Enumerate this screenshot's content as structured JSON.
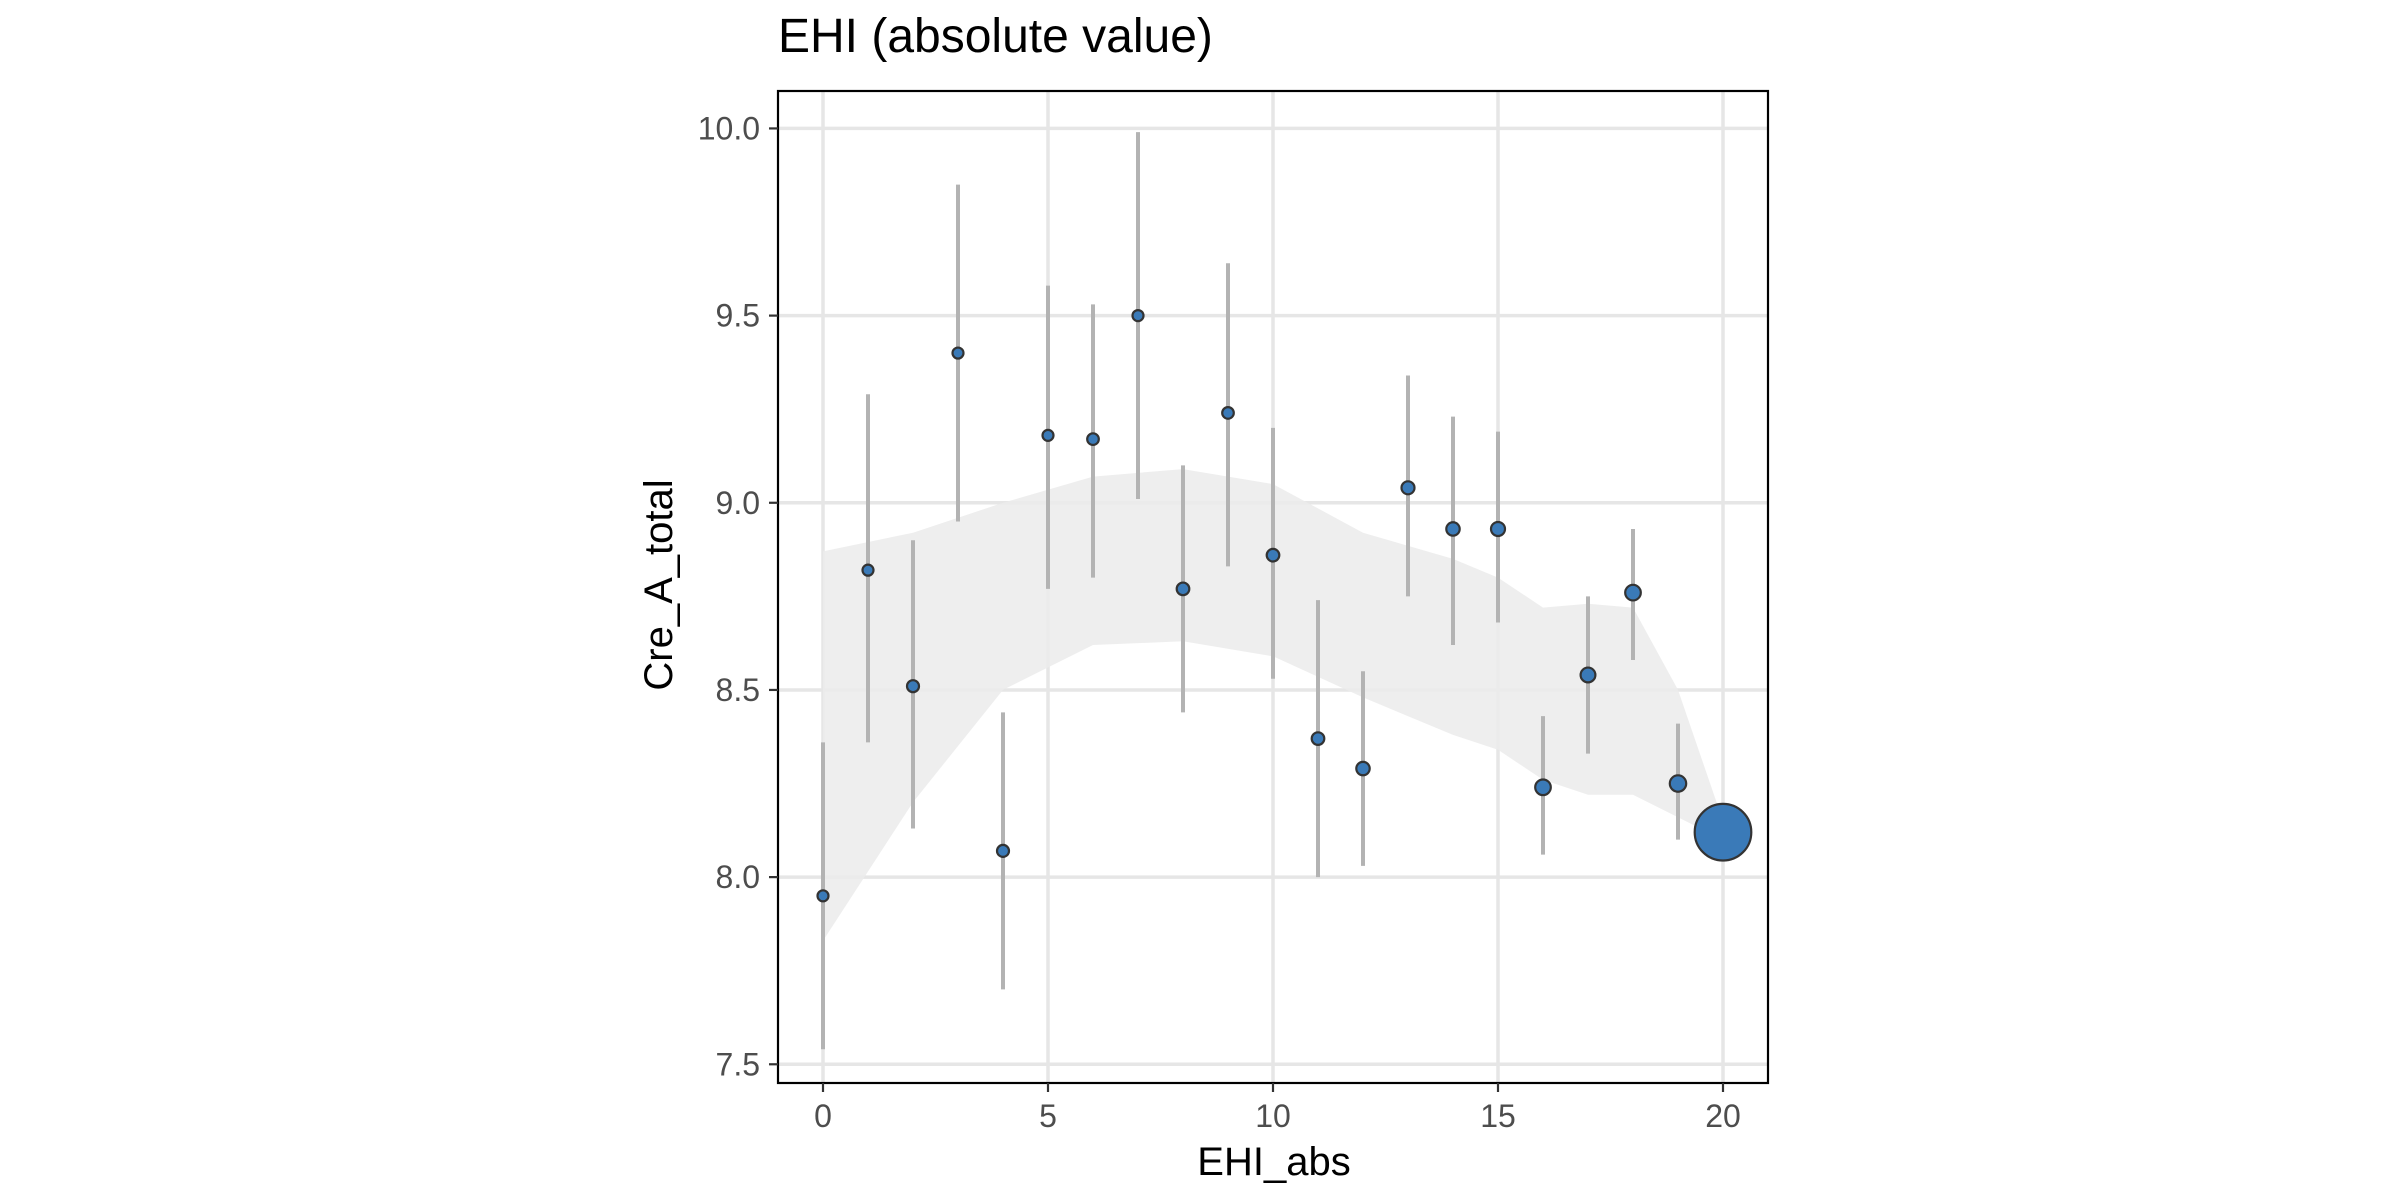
{
  "chart_data": {
    "type": "scatter",
    "title": "EHI (absolute value)",
    "xlabel": "EHI_abs",
    "ylabel": "Cre_A_total",
    "xlim": [
      -1,
      21
    ],
    "ylim": [
      7.45,
      10.1
    ],
    "x_ticks": [
      0,
      5,
      10,
      15,
      20
    ],
    "y_ticks": [
      7.5,
      8.0,
      8.5,
      9.0,
      9.5,
      10.0
    ],
    "x_tick_labels": [
      "0",
      "5",
      "10",
      "15",
      "20"
    ],
    "y_tick_labels": [
      "7.5",
      "8.0",
      "8.5",
      "9.0",
      "9.5",
      "10.0"
    ],
    "grid": true,
    "legend": "none",
    "point_color": "#3a7ab8",
    "errorbar_color": "#b3b3b3",
    "band_color": "#ebebeb",
    "points": [
      {
        "x": 0,
        "y": 7.95,
        "ymin": 7.54,
        "ymax": 8.36,
        "size": 1
      },
      {
        "x": 1,
        "y": 8.82,
        "ymin": 8.36,
        "ymax": 9.29,
        "size": 1
      },
      {
        "x": 2,
        "y": 8.51,
        "ymin": 8.13,
        "ymax": 8.9,
        "size": 1.2
      },
      {
        "x": 3,
        "y": 9.4,
        "ymin": 8.95,
        "ymax": 9.85,
        "size": 1
      },
      {
        "x": 4,
        "y": 8.07,
        "ymin": 7.7,
        "ymax": 8.44,
        "size": 1.2
      },
      {
        "x": 5,
        "y": 9.18,
        "ymin": 8.77,
        "ymax": 9.58,
        "size": 1
      },
      {
        "x": 6,
        "y": 9.17,
        "ymin": 8.8,
        "ymax": 9.53,
        "size": 1.1
      },
      {
        "x": 7,
        "y": 9.5,
        "ymin": 9.01,
        "ymax": 9.99,
        "size": 1
      },
      {
        "x": 8,
        "y": 8.77,
        "ymin": 8.44,
        "ymax": 9.1,
        "size": 1.3
      },
      {
        "x": 9,
        "y": 9.24,
        "ymin": 8.83,
        "ymax": 9.64,
        "size": 1.1
      },
      {
        "x": 10,
        "y": 8.86,
        "ymin": 8.53,
        "ymax": 9.2,
        "size": 1.3
      },
      {
        "x": 11,
        "y": 8.37,
        "ymin": 8.0,
        "ymax": 8.74,
        "size": 1.3
      },
      {
        "x": 12,
        "y": 8.29,
        "ymin": 8.03,
        "ymax": 8.55,
        "size": 1.5
      },
      {
        "x": 13,
        "y": 9.04,
        "ymin": 8.75,
        "ymax": 9.34,
        "size": 1.4
      },
      {
        "x": 14,
        "y": 8.93,
        "ymin": 8.62,
        "ymax": 9.23,
        "size": 1.5
      },
      {
        "x": 15,
        "y": 8.93,
        "ymin": 8.68,
        "ymax": 9.19,
        "size": 1.6
      },
      {
        "x": 16,
        "y": 8.24,
        "ymin": 8.06,
        "ymax": 8.43,
        "size": 2.0
      },
      {
        "x": 17,
        "y": 8.54,
        "ymin": 8.33,
        "ymax": 8.75,
        "size": 1.8
      },
      {
        "x": 18,
        "y": 8.76,
        "ymin": 8.58,
        "ymax": 8.93,
        "size": 2.0
      },
      {
        "x": 19,
        "y": 8.25,
        "ymin": 8.1,
        "ymax": 8.41,
        "size": 2.2
      },
      {
        "x": 20,
        "y": 8.12,
        "ymin": 8.12,
        "ymax": 8.12,
        "size": 5.0
      }
    ],
    "smooth_band": {
      "x": [
        0,
        2,
        4,
        6,
        8,
        10,
        12,
        14,
        15,
        16,
        17,
        18,
        19,
        20
      ],
      "upper": [
        8.87,
        8.92,
        9.0,
        9.07,
        9.09,
        9.05,
        8.92,
        8.85,
        8.8,
        8.72,
        8.73,
        8.72,
        8.5,
        8.15
      ],
      "lower": [
        7.83,
        8.2,
        8.5,
        8.62,
        8.63,
        8.59,
        8.48,
        8.38,
        8.34,
        8.26,
        8.22,
        8.22,
        8.16,
        8.1
      ]
    }
  }
}
